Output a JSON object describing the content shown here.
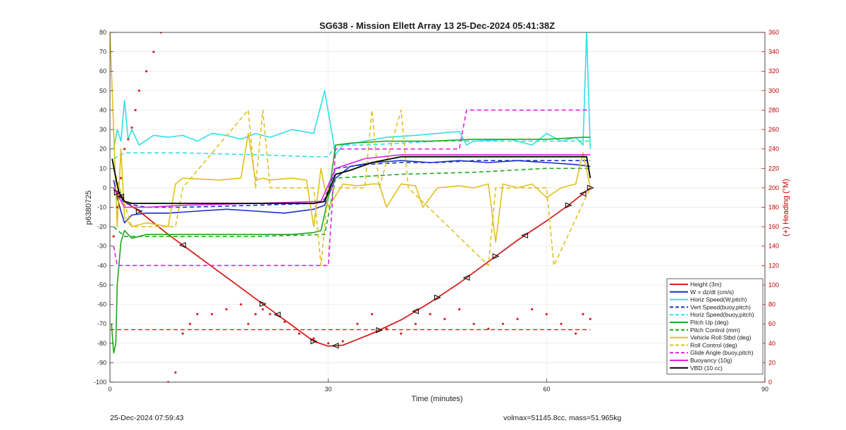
{
  "chart_data": {
    "type": "line",
    "title": "SG638 - Mission Ellett Array 13 25-Dec-2024 05:41:38Z",
    "xlabel": "Time (minutes)",
    "ylabel": "p6380725",
    "y2label": "(+) Heading (°M)",
    "xlim": [
      0,
      90
    ],
    "ylim": [
      -100,
      80
    ],
    "y2lim": [
      0,
      360
    ],
    "xticks": [
      0,
      30,
      60,
      90
    ],
    "yticks": [
      -100,
      -90,
      -80,
      -70,
      -60,
      -50,
      -40,
      -30,
      -20,
      -10,
      0,
      10,
      20,
      30,
      40,
      50,
      60,
      70,
      80
    ],
    "y2ticks": [
      0,
      20,
      40,
      60,
      80,
      100,
      120,
      140,
      160,
      180,
      200,
      220,
      240,
      260,
      280,
      300,
      320,
      340,
      360
    ],
    "grid": true,
    "legend_position": "bottom-right",
    "legend": [
      {
        "label": "Height (3m)",
        "color": "#d62020",
        "style": "solid"
      },
      {
        "label": "W = dz/dt (cm/s)",
        "color": "#1a2fc8",
        "style": "solid"
      },
      {
        "label": "Horiz Speed(W,pitch)",
        "color": "#2fe0e8",
        "style": "solid"
      },
      {
        "label": "Vert Speed(buoy,pitch)",
        "color": "#1a2fc8",
        "style": "dashed"
      },
      {
        "label": "Horiz Speed(buoy,pitch)",
        "color": "#2fe0e8",
        "style": "dashed"
      },
      {
        "label": "Pitch Up (deg)",
        "color": "#1ea81e",
        "style": "solid"
      },
      {
        "label": "Pitch Control (mm)",
        "color": "#1ea81e",
        "style": "dashed"
      },
      {
        "label": "Vehicle Roll Stbd (deg)",
        "color": "#e0c020",
        "style": "solid"
      },
      {
        "label": "Roll Control (deg)",
        "color": "#e0c020",
        "style": "dashed"
      },
      {
        "label": "Glide Angle (buoy,pitch)",
        "color": "#e020e0",
        "style": "dashed"
      },
      {
        "label": "Buoyancy (10g)",
        "color": "#e020e0",
        "style": "solid"
      },
      {
        "label": "VBD (10 cc)",
        "color": "#000000",
        "style": "solid"
      }
    ],
    "series": [
      {
        "name": "Height (3m)",
        "x": [
          0.5,
          1.2,
          2,
          4,
          8,
          12,
          16,
          20,
          24,
          28,
          30,
          32,
          36,
          40,
          44,
          48,
          52,
          56,
          60,
          63,
          66
        ],
        "y": [
          -1,
          -3,
          -7,
          -12,
          -24,
          -35,
          -46,
          -57,
          -68,
          -79,
          -81.5,
          -81,
          -75,
          -68,
          -59,
          -49,
          -38,
          -27,
          -17,
          -9,
          0
        ]
      },
      {
        "name": "W = dz/dt (cm/s)",
        "x": [
          0.5,
          1,
          1.5,
          2,
          3,
          5,
          8,
          12,
          16,
          20,
          24,
          28,
          29.5,
          31,
          33,
          36,
          40,
          44,
          48,
          52,
          56,
          60,
          64,
          66
        ],
        "y": [
          4,
          -5,
          -12,
          -18,
          -14,
          -13,
          -13,
          -12,
          -11,
          -12,
          -13,
          -11,
          -9,
          5,
          11,
          13,
          14,
          13,
          14,
          13,
          14,
          13,
          12,
          11
        ]
      },
      {
        "name": "Horiz Speed(W,pitch)",
        "x": [
          0.5,
          1,
          1.5,
          2,
          2.5,
          3,
          4,
          6,
          8,
          10,
          12,
          14,
          16,
          18,
          20,
          22,
          25,
          28,
          29.5,
          30.5,
          31,
          32,
          35,
          38,
          42,
          45,
          48,
          49,
          50,
          55,
          58,
          60,
          62,
          64,
          65,
          65.5,
          66
        ],
        "y": [
          20,
          30,
          24,
          45,
          25,
          30,
          22,
          27,
          26,
          27,
          24,
          28,
          27,
          25,
          28,
          26,
          30,
          28,
          50,
          28,
          17,
          22,
          24,
          26,
          27,
          28,
          29,
          22,
          24,
          25,
          22,
          28,
          24,
          26,
          22,
          80,
          20
        ]
      },
      {
        "name": "Vert Speed(buoy,pitch)",
        "x": [
          0.5,
          2,
          5,
          10,
          20,
          28,
          29.5,
          31,
          35,
          40,
          45,
          50,
          55,
          60,
          66
        ],
        "y": [
          0,
          -8,
          -10,
          -10,
          -9,
          -8,
          -6,
          10,
          12,
          13,
          13,
          14,
          14,
          14,
          14
        ]
      },
      {
        "name": "Horiz Speed(buoy,pitch)",
        "x": [
          0.5,
          2,
          5,
          10,
          20,
          28,
          30,
          31,
          35,
          40,
          45,
          50,
          55,
          60,
          66
        ],
        "y": [
          15,
          18,
          18,
          18,
          17,
          16,
          16,
          22,
          22,
          23,
          24,
          24,
          24,
          24,
          24
        ]
      },
      {
        "name": "Pitch Up (deg)",
        "x": [
          0.2,
          0.5,
          0.8,
          1,
          1.5,
          2,
          3,
          5,
          8,
          12,
          16,
          20,
          25,
          28,
          29,
          30,
          31,
          33,
          38,
          44,
          50,
          55,
          60,
          65,
          66
        ],
        "y": [
          -70,
          -85,
          -80,
          -50,
          -28,
          -22,
          -26,
          -24,
          -24,
          -24,
          -24,
          -24,
          -24,
          -23,
          -22,
          -5,
          22,
          23,
          24,
          24,
          25,
          25,
          25,
          26,
          26
        ]
      },
      {
        "name": "Pitch Control (mm)",
        "x": [
          0.5,
          2,
          5,
          10,
          20,
          29.5,
          31,
          40,
          50,
          55,
          60,
          66
        ],
        "y": [
          -20,
          -25,
          -25,
          -25,
          -25,
          -24,
          5,
          7,
          8,
          9,
          10,
          10
        ]
      },
      {
        "name": "Vehicle Roll Stbd (deg)",
        "x": [
          0,
          0.5,
          1,
          1.5,
          2,
          3,
          5,
          8,
          9,
          10,
          15,
          18,
          19,
          20,
          21,
          22,
          25,
          27,
          28,
          29,
          30,
          32,
          34,
          36,
          37,
          38,
          40,
          42,
          43,
          45,
          48,
          50,
          52,
          53,
          54,
          56,
          58,
          60,
          62,
          64,
          65,
          66
        ],
        "y": [
          80,
          30,
          -20,
          20,
          -15,
          -20,
          -18,
          -20,
          2,
          5,
          4,
          5,
          28,
          4,
          5,
          4,
          5,
          4,
          -20,
          10,
          -10,
          2,
          1,
          2,
          2,
          -10,
          2,
          1,
          -10,
          0,
          1,
          0,
          2,
          -28,
          2,
          0,
          2,
          -5,
          0,
          2,
          18,
          0
        ]
      },
      {
        "name": "Roll Control (deg)",
        "x": [
          0.5,
          3,
          6,
          9,
          10,
          19,
          20,
          21,
          22,
          28,
          29,
          30,
          35,
          36,
          37,
          40,
          41,
          52,
          53,
          54,
          60,
          61,
          66
        ],
        "y": [
          10,
          -20,
          -20,
          -20,
          0,
          40,
          0,
          40,
          0,
          0,
          -40,
          0,
          0,
          40,
          0,
          40,
          0,
          -40,
          0,
          0,
          0,
          -40,
          0
        ]
      },
      {
        "name": "Glide Angle (buoy,pitch)",
        "x": [
          0.5,
          1,
          3,
          5,
          9,
          12,
          18,
          22,
          28,
          30,
          31,
          48,
          49,
          52,
          55,
          58,
          60,
          62,
          64,
          66
        ],
        "y": [
          -30,
          -40,
          -40,
          -40,
          -40,
          -40,
          -40,
          -40,
          -40,
          -40,
          20,
          20,
          40,
          40,
          40,
          40,
          40,
          40,
          40,
          40
        ]
      },
      {
        "name": "Buoyancy (10g)",
        "x": [
          0.5,
          2,
          5,
          10,
          20,
          29,
          31,
          35,
          40,
          50,
          60,
          66
        ],
        "y": [
          0,
          -10,
          -10,
          -9,
          -8,
          -7,
          10,
          15,
          17,
          17,
          17,
          17
        ]
      },
      {
        "name": "VBD (10 cc)",
        "x": [
          0.3,
          0.8,
          1.2,
          2,
          3,
          5,
          10,
          20,
          28,
          29.5,
          31,
          33,
          36,
          40,
          45,
          50,
          55,
          60,
          64,
          65.5,
          66
        ],
        "y": [
          15,
          5,
          -2,
          -7,
          -8,
          -8,
          -8,
          -8,
          -8,
          -7,
          7,
          9,
          13,
          16,
          16,
          16,
          16,
          16,
          16,
          16,
          5
        ]
      },
      {
        "name": "Heading",
        "axis": "right",
        "x": [
          0.5,
          1,
          1.5,
          2,
          2.5,
          3,
          3.5,
          4,
          5,
          6,
          7,
          8,
          9,
          10,
          11,
          12,
          14,
          16,
          18,
          19,
          20,
          21,
          22,
          24,
          26,
          28,
          30,
          32,
          34,
          36,
          38,
          40,
          42,
          44,
          46,
          48,
          50,
          52,
          54,
          56,
          58,
          60,
          62,
          64,
          65,
          66
        ],
        "y": [
          150,
          180,
          210,
          240,
          250,
          262,
          280,
          300,
          320,
          340,
          360,
          0,
          10,
          50,
          60,
          70,
          70,
          75,
          80,
          60,
          70,
          75,
          70,
          62,
          50,
          45,
          40,
          42,
          60,
          70,
          55,
          50,
          60,
          70,
          65,
          75,
          60,
          55,
          60,
          65,
          75,
          70,
          60,
          50,
          70,
          65
        ]
      },
      {
        "name": "Mean heading",
        "axis": "right",
        "x": [
          0,
          66
        ],
        "y": [
          54,
          54
        ]
      }
    ],
    "markers": [
      1,
      1.5,
      4,
      10,
      21,
      23,
      28,
      31,
      37,
      42,
      45,
      49,
      53,
      57,
      63,
      65,
      66
    ]
  },
  "footer": {
    "left": "25-Dec-2024 07:59:43",
    "right": "volmax=51145.8cc, mass=51.965kg"
  }
}
